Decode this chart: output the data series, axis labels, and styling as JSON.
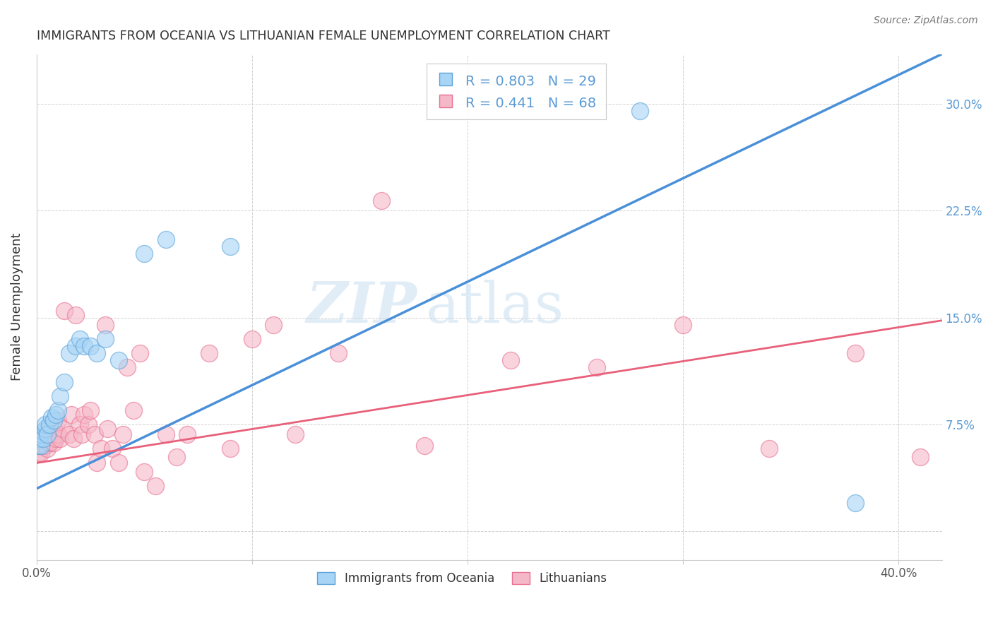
{
  "title": "IMMIGRANTS FROM OCEANIA VS LITHUANIAN FEMALE UNEMPLOYMENT CORRELATION CHART",
  "source": "Source: ZipAtlas.com",
  "ylabel": "Female Unemployment",
  "xlim": [
    0.0,
    0.42
  ],
  "ylim": [
    -0.02,
    0.335
  ],
  "blue_R": 0.803,
  "blue_N": 29,
  "pink_R": 0.441,
  "pink_N": 68,
  "blue_color": "#A8D4F5",
  "pink_color": "#F5B8C8",
  "blue_edge_color": "#5BA3D9",
  "pink_edge_color": "#E87090",
  "blue_line_color": "#4A90D9",
  "pink_line_color": "#E8607A",
  "legend_label_blue": "Immigrants from Oceania",
  "legend_label_pink": "Lithuanians",
  "watermark_zip": "ZIP",
  "watermark_atlas": "atlas",
  "text_color_blue": "#5B9BD5",
  "title_color": "#333333",
  "grid_color": "#CCCCCC",
  "blue_x": [
    0.001,
    0.001,
    0.002,
    0.002,
    0.003,
    0.003,
    0.004,
    0.004,
    0.005,
    0.006,
    0.007,
    0.008,
    0.009,
    0.01,
    0.011,
    0.013,
    0.015,
    0.018,
    0.02,
    0.022,
    0.025,
    0.028,
    0.032,
    0.038,
    0.05,
    0.06,
    0.09,
    0.28,
    0.38
  ],
  "blue_y": [
    0.06,
    0.065,
    0.06,
    0.068,
    0.07,
    0.065,
    0.072,
    0.075,
    0.068,
    0.075,
    0.08,
    0.078,
    0.082,
    0.085,
    0.095,
    0.105,
    0.125,
    0.13,
    0.135,
    0.13,
    0.13,
    0.125,
    0.135,
    0.12,
    0.195,
    0.205,
    0.2,
    0.295,
    0.02
  ],
  "pink_x": [
    0.001,
    0.001,
    0.001,
    0.001,
    0.001,
    0.002,
    0.002,
    0.002,
    0.002,
    0.003,
    0.003,
    0.003,
    0.004,
    0.004,
    0.005,
    0.005,
    0.005,
    0.006,
    0.006,
    0.007,
    0.007,
    0.008,
    0.008,
    0.009,
    0.01,
    0.01,
    0.011,
    0.012,
    0.013,
    0.015,
    0.016,
    0.017,
    0.018,
    0.02,
    0.021,
    0.022,
    0.024,
    0.025,
    0.027,
    0.028,
    0.03,
    0.032,
    0.033,
    0.035,
    0.038,
    0.04,
    0.042,
    0.045,
    0.048,
    0.05,
    0.055,
    0.06,
    0.065,
    0.07,
    0.08,
    0.09,
    0.1,
    0.11,
    0.12,
    0.14,
    0.16,
    0.18,
    0.22,
    0.26,
    0.3,
    0.34,
    0.38,
    0.41
  ],
  "pink_y": [
    0.055,
    0.06,
    0.062,
    0.065,
    0.068,
    0.055,
    0.06,
    0.065,
    0.068,
    0.06,
    0.065,
    0.068,
    0.06,
    0.065,
    0.058,
    0.063,
    0.068,
    0.062,
    0.068,
    0.063,
    0.068,
    0.062,
    0.072,
    0.065,
    0.068,
    0.078,
    0.065,
    0.072,
    0.155,
    0.068,
    0.082,
    0.065,
    0.152,
    0.075,
    0.068,
    0.082,
    0.075,
    0.085,
    0.068,
    0.048,
    0.058,
    0.145,
    0.072,
    0.058,
    0.048,
    0.068,
    0.115,
    0.085,
    0.125,
    0.042,
    0.032,
    0.068,
    0.052,
    0.068,
    0.125,
    0.058,
    0.135,
    0.145,
    0.068,
    0.125,
    0.232,
    0.06,
    0.12,
    0.115,
    0.145,
    0.058,
    0.125,
    0.052
  ],
  "blue_trend_x0": 0.0,
  "blue_trend_y0": 0.03,
  "blue_trend_x1": 0.42,
  "blue_trend_y1": 0.335,
  "pink_trend_x0": 0.0,
  "pink_trend_y0": 0.048,
  "pink_trend_x1": 0.42,
  "pink_trend_y1": 0.148
}
